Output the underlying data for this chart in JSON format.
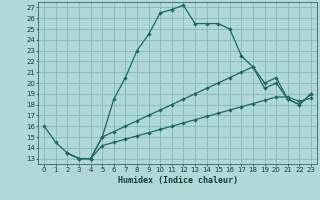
{
  "xlabel": "Humidex (Indice chaleur)",
  "background_color": "#b0d8d8",
  "grid_color": "#80b8b8",
  "line_color": "#1a6b5a",
  "xlim": [
    -0.5,
    23.5
  ],
  "ylim": [
    12.5,
    27.5
  ],
  "xticks": [
    0,
    1,
    2,
    3,
    4,
    5,
    6,
    7,
    8,
    9,
    10,
    11,
    12,
    13,
    14,
    15,
    16,
    17,
    18,
    19,
    20,
    21,
    22,
    23
  ],
  "yticks": [
    13,
    14,
    15,
    16,
    17,
    18,
    19,
    20,
    21,
    22,
    23,
    24,
    25,
    26,
    27
  ],
  "line1_x": [
    0,
    1,
    2,
    3,
    4,
    5,
    6,
    7,
    8,
    9,
    10,
    11,
    12,
    13,
    14,
    15,
    16,
    17,
    18,
    19,
    20,
    21,
    22,
    23
  ],
  "line1_y": [
    16,
    14.5,
    13.5,
    13,
    13,
    15,
    18.5,
    20.5,
    23,
    24.5,
    26.5,
    26.8,
    27.2,
    25.5,
    25.5,
    25.5,
    25,
    22.5,
    21.5,
    20,
    20.5,
    18.5,
    18,
    19
  ],
  "line2_x": [
    2,
    3,
    4,
    5,
    6,
    7,
    8,
    9,
    10,
    11,
    12,
    13,
    14,
    15,
    16,
    17,
    18,
    19,
    20,
    21,
    22,
    23
  ],
  "line2_y": [
    13.5,
    13,
    13,
    15,
    15.5,
    16,
    16.5,
    17,
    17.5,
    18,
    18.5,
    19,
    19.5,
    20,
    20.5,
    21,
    21.5,
    19.5,
    20,
    18.5,
    18,
    19
  ],
  "line3_x": [
    2,
    3,
    4,
    5,
    6,
    7,
    8,
    9,
    10,
    11,
    12,
    13,
    14,
    15,
    16,
    17,
    18,
    19,
    20,
    21,
    22,
    23
  ],
  "line3_y": [
    13.5,
    13,
    13,
    14.2,
    14.5,
    14.8,
    15.1,
    15.4,
    15.7,
    16.0,
    16.3,
    16.6,
    16.9,
    17.2,
    17.5,
    17.8,
    18.1,
    18.4,
    18.7,
    18.7,
    18.3,
    18.6
  ]
}
